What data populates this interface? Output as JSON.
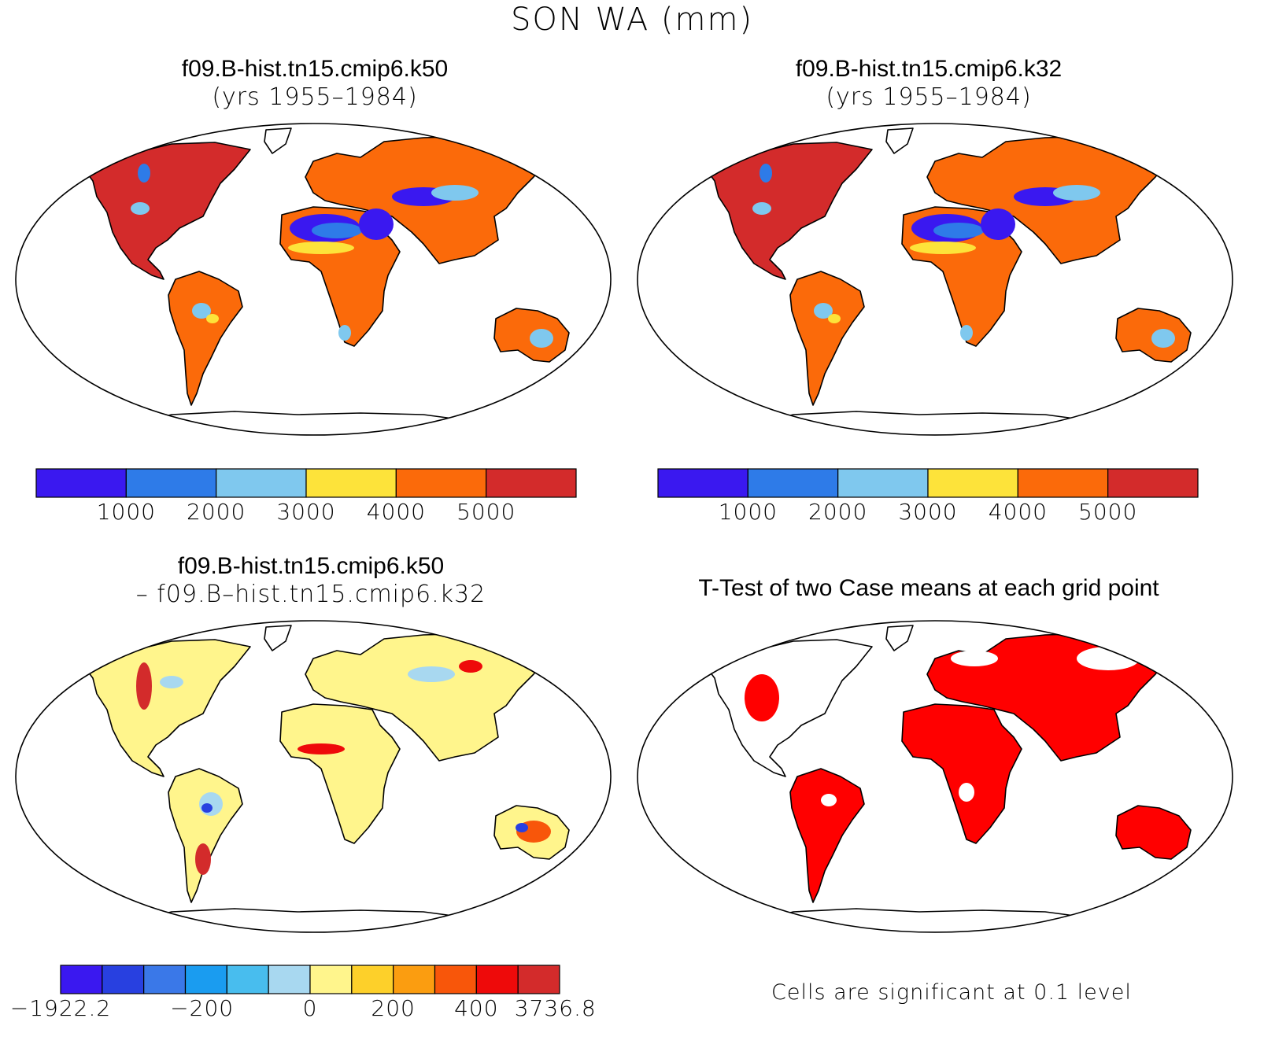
{
  "title": "SON WA (mm)",
  "panels": [
    {
      "line1": "f09.B-hist.tn15.cmip6.k50",
      "line2": "(yrs 1955–1984)"
    },
    {
      "line1": "f09.B-hist.tn15.cmip6.k32",
      "line2": "(yrs 1955–1984)"
    },
    {
      "line1": "f09.B-hist.tn15.cmip6.k50",
      "line2": "– f09.B–hist.tn15.cmip6.k32"
    },
    {
      "line1": "T-Test of two Case means at each grid point",
      "line2": ""
    }
  ],
  "colorbar_abs": {
    "colors": [
      "#3a18f0",
      "#2e7be8",
      "#7fc8ee",
      "#fde33a",
      "#fb6a0a",
      "#d32b2b"
    ],
    "labels": [
      "1000",
      "2000",
      "3000",
      "4000",
      "5000"
    ]
  },
  "colorbar_diff": {
    "colors": [
      "#3a18f0",
      "#2840e0",
      "#3a78e8",
      "#1a9cf0",
      "#48bdee",
      "#a8d8f0",
      "#fff58c",
      "#fdd02a",
      "#fb9d10",
      "#f8560a",
      "#ee0a0a",
      "#d32b2b"
    ],
    "labels": [
      "−1922.2",
      "−200",
      "0",
      "200",
      "400",
      "3736.8"
    ]
  },
  "note": "Cells are significant at 0.1 level",
  "colors": {
    "land_abs_main": "#fb6a0a",
    "land_abs_north_america": "#d32b2b",
    "land_diff_base": "#fff58c",
    "significant": "#ff0000"
  }
}
